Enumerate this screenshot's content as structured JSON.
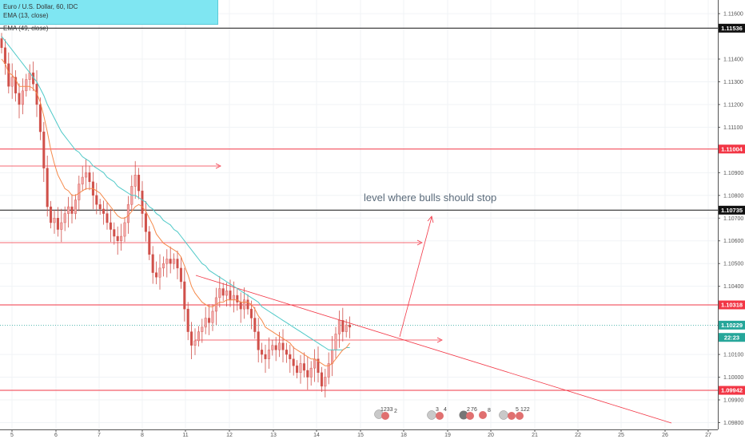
{
  "legend": {
    "title": "Euro / U.S. Dollar, 60, IDC",
    "ema_fast": "EMA (13, close)",
    "ema_slow": "EMA (49, close)"
  },
  "colors": {
    "ema_fast": "#f5894a",
    "ema_slow": "#4fc9c8",
    "candle": "#d0504a",
    "red_level": "#f23645",
    "black_level": "#111111",
    "current": "#26a69a",
    "legend_bg": "#7fe6f2"
  },
  "chart_data": {
    "type": "candlestick",
    "symbol": "Euro / U.S. Dollar, 60, IDC",
    "indicators": [
      "EMA (13, close)",
      "EMA (49, close)"
    ],
    "x_ticks": [
      "5",
      "6",
      "7",
      "8",
      "11",
      "12",
      "13",
      "14",
      "15",
      "18",
      "19",
      "20",
      "21",
      "22",
      "25",
      "26",
      "27"
    ],
    "y_ticks": [
      "1.11600",
      "1.11400",
      "1.11300",
      "1.11200",
      "1.11100",
      "1.10900",
      "1.10800",
      "1.10700",
      "1.10600",
      "1.10500",
      "1.10400",
      "1.10100",
      "1.10000",
      "1.09900",
      "1.09800"
    ],
    "ylim": [
      1.0977,
      1.1166
    ],
    "price_labels": [
      {
        "label": "1.11536",
        "value": 1.11536,
        "style": "black"
      },
      {
        "label": "1.11004",
        "value": 1.11004,
        "style": "red"
      },
      {
        "label": "1.10735",
        "value": 1.10735,
        "style": "black"
      },
      {
        "label": "1.10318",
        "value": 1.10318,
        "style": "red"
      },
      {
        "label": "1.10229",
        "value": 1.10229,
        "style": "current"
      },
      {
        "label": "22:23",
        "value": 1.10175,
        "style": "current"
      },
      {
        "label": "1.09942",
        "value": 1.09942,
        "style": "red"
      }
    ],
    "annotations": [
      {
        "text": "level where bulls should stop"
      }
    ],
    "event_labels": [
      "1233",
      "2",
      "3",
      "4",
      "2",
      "7",
      "6",
      "8",
      "5",
      "122"
    ],
    "close": [
      1.1145,
      1.1138,
      1.1128,
      1.1132,
      1.1125,
      1.112,
      1.1126,
      1.1131,
      1.1134,
      1.1129,
      1.112,
      1.1108,
      1.1092,
      1.1075,
      1.1068,
      1.107,
      1.1065,
      1.1068,
      1.1072,
      1.1075,
      1.1072,
      1.1078,
      1.1085,
      1.1088,
      1.109,
      1.1086,
      1.108,
      1.1076,
      1.1074,
      1.1072,
      1.1068,
      1.1065,
      1.1062,
      1.106,
      1.1062,
      1.1068,
      1.1076,
      1.1084,
      1.1089,
      1.1082,
      1.1072,
      1.1064,
      1.1054,
      1.1046,
      1.1044,
      1.1048,
      1.105,
      1.1052,
      1.105,
      1.1052,
      1.1048,
      1.1042,
      1.103,
      1.102,
      1.1014,
      1.1016,
      1.102,
      1.1022,
      1.1026,
      1.1024,
      1.1029,
      1.1035,
      1.1039,
      1.1036,
      1.1038,
      1.1034,
      1.1036,
      1.1033,
      1.103,
      1.1034,
      1.103,
      1.1026,
      1.102,
      1.1012,
      1.101,
      1.1008,
      1.1012,
      1.1014,
      1.1012,
      1.1015,
      1.1012,
      1.101,
      1.1008,
      1.1005,
      1.1002,
      1.1006,
      1.1003,
      1.1,
      1.1004,
      1.1008,
      1.1002,
      1.0996,
      1.1,
      1.1006,
      1.1012,
      1.1019,
      1.1025,
      1.102,
      1.1023,
      1.1022
    ],
    "ema_fast": [
      1.114,
      1.1138,
      1.1134,
      1.1133,
      1.1131,
      1.1128,
      1.1128,
      1.1128,
      1.1128,
      1.1127,
      1.1125,
      1.1121,
      1.1115,
      1.1108,
      1.11,
      1.1094,
      1.1089,
      1.1086,
      1.1083,
      1.1082,
      1.108,
      1.108,
      1.1081,
      1.1082,
      1.1083,
      1.1083,
      1.1083,
      1.1082,
      1.1081,
      1.1079,
      1.1077,
      1.1075,
      1.1073,
      1.1071,
      1.107,
      1.107,
      1.1071,
      1.1073,
      1.1075,
      1.1076,
      1.1075,
      1.1073,
      1.107,
      1.1067,
      1.1063,
      1.1061,
      1.1059,
      1.1058,
      1.1057,
      1.1056,
      1.1055,
      1.1053,
      1.1049,
      1.1045,
      1.104,
      1.1037,
      1.1035,
      1.1033,
      1.1032,
      1.1031,
      1.1031,
      1.1032,
      1.1033,
      1.1033,
      1.1034,
      1.1034,
      1.1034,
      1.1034,
      1.1033,
      1.1033,
      1.1033,
      1.1032,
      1.103,
      1.1027,
      1.1025,
      1.1022,
      1.1021,
      1.102,
      1.1019,
      1.1018,
      1.1017,
      1.1016,
      1.1015,
      1.1013,
      1.1012,
      1.1011,
      1.101,
      1.1009,
      1.1008,
      1.1008,
      1.1007,
      1.1006,
      1.1005,
      1.1005,
      1.1006,
      1.1008,
      1.101,
      1.1012,
      1.1013,
      1.1015
    ],
    "ema_slow": [
      1.115,
      1.1148,
      1.1146,
      1.1144,
      1.1142,
      1.114,
      1.1138,
      1.1136,
      1.1134,
      1.1132,
      1.113,
      1.1127,
      1.1124,
      1.112,
      1.1117,
      1.1114,
      1.1111,
      1.1108,
      1.1106,
      1.1104,
      1.1102,
      1.11,
      1.1099,
      1.1097,
      1.1096,
      1.1095,
      1.1093,
      1.1092,
      1.1091,
      1.109,
      1.1088,
      1.1087,
      1.1086,
      1.1084,
      1.1083,
      1.1082,
      1.1081,
      1.108,
      1.108,
      1.1079,
      1.1078,
      1.1077,
      1.1075,
      1.1074,
      1.1072,
      1.1071,
      1.1069,
      1.1068,
      1.1067,
      1.1065,
      1.1064,
      1.1062,
      1.106,
      1.1058,
      1.1056,
      1.1054,
      1.1052,
      1.105,
      1.1049,
      1.1047,
      1.1046,
      1.1045,
      1.1044,
      1.1043,
      1.1042,
      1.1041,
      1.104,
      1.1039,
      1.1038,
      1.1037,
      1.1036,
      1.1035,
      1.1034,
      1.1033,
      1.1031,
      1.103,
      1.1029,
      1.1028,
      1.1027,
      1.1026,
      1.1025,
      1.1024,
      1.1023,
      1.1022,
      1.1021,
      1.102,
      1.1019,
      1.1018,
      1.1017,
      1.1016,
      1.1015,
      1.1014,
      1.1013,
      1.1012,
      1.1012,
      1.1012,
      1.1012,
      1.1012,
      1.1013,
      1.1013
    ]
  }
}
